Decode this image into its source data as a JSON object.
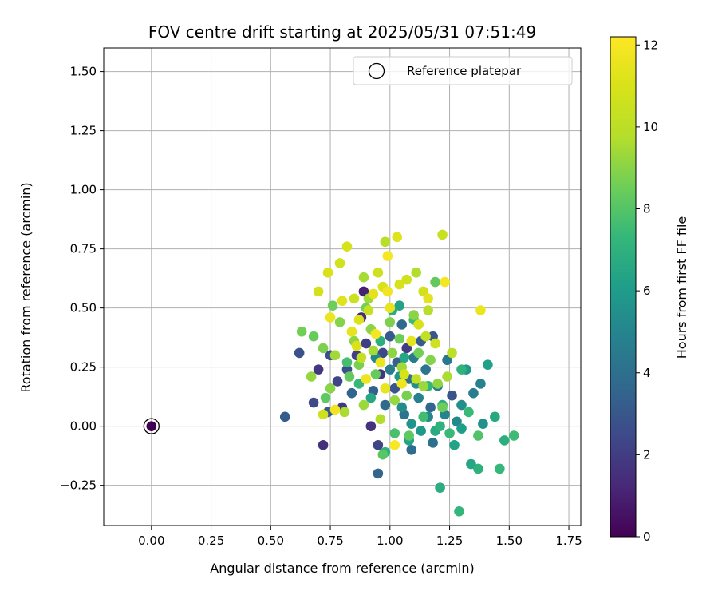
{
  "chart_data": {
    "type": "scatter",
    "title": "FOV centre drift starting at 2025/05/31 07:51:49",
    "xlabel": "Angular distance from reference (arcmin)",
    "ylabel": "Rotation from reference (arcmin)",
    "xlim": [
      -0.2,
      1.8
    ],
    "ylim": [
      -0.42,
      1.6
    ],
    "xticks": [
      "0.00",
      "0.25",
      "0.50",
      "0.75",
      "1.00",
      "1.25",
      "1.50",
      "1.75"
    ],
    "yticks": [
      "−0.25",
      "0.00",
      "0.25",
      "0.50",
      "0.75",
      "1.00",
      "1.25",
      "1.50"
    ],
    "grid": true,
    "legend": {
      "label": "Reference platepar",
      "placement": "top-right"
    },
    "colorbar": {
      "label": "Hours from first FF file",
      "range": [
        0,
        12.2
      ],
      "ticks": [
        "0",
        "2",
        "4",
        "6",
        "8",
        "10",
        "12"
      ],
      "colormap": "viridis"
    },
    "reference_point": {
      "x": 0.0,
      "y": 0.0,
      "hours": 0
    },
    "points": [
      {
        "x": 0.56,
        "y": 0.04,
        "h": 3.2
      },
      {
        "x": 0.62,
        "y": 0.31,
        "h": 2.8
      },
      {
        "x": 0.68,
        "y": 0.1,
        "h": 2.5
      },
      {
        "x": 0.7,
        "y": 0.24,
        "h": 1.8
      },
      {
        "x": 0.72,
        "y": -0.08,
        "h": 1.5
      },
      {
        "x": 0.74,
        "y": 0.06,
        "h": 3.0
      },
      {
        "x": 0.75,
        "y": 0.3,
        "h": 2.6
      },
      {
        "x": 0.78,
        "y": 0.19,
        "h": 2.3
      },
      {
        "x": 0.8,
        "y": 0.08,
        "h": 1.9
      },
      {
        "x": 0.82,
        "y": 0.24,
        "h": 2.7
      },
      {
        "x": 0.84,
        "y": 0.14,
        "h": 3.5
      },
      {
        "x": 0.86,
        "y": 0.3,
        "h": 2.1
      },
      {
        "x": 0.88,
        "y": 0.46,
        "h": 1.4
      },
      {
        "x": 0.89,
        "y": 0.57,
        "h": 1.0
      },
      {
        "x": 0.9,
        "y": 0.35,
        "h": 2.0
      },
      {
        "x": 0.92,
        "y": 0.0,
        "h": 1.6
      },
      {
        "x": 0.93,
        "y": 0.15,
        "h": 3.3
      },
      {
        "x": 0.95,
        "y": -0.2,
        "h": 3.6
      },
      {
        "x": 0.95,
        "y": -0.08,
        "h": 2.2
      },
      {
        "x": 0.96,
        "y": 0.22,
        "h": 1.7
      },
      {
        "x": 0.97,
        "y": 0.31,
        "h": 2.4
      },
      {
        "x": 0.98,
        "y": 0.09,
        "h": 3.8
      },
      {
        "x": 1.0,
        "y": 0.38,
        "h": 3.1
      },
      {
        "x": 1.02,
        "y": 0.16,
        "h": 2.9
      },
      {
        "x": 1.03,
        "y": 0.27,
        "h": 3.4
      },
      {
        "x": 1.05,
        "y": 0.43,
        "h": 3.7
      },
      {
        "x": 1.06,
        "y": 0.05,
        "h": 4.2
      },
      {
        "x": 1.07,
        "y": 0.33,
        "h": 2.0
      },
      {
        "x": 1.08,
        "y": 0.2,
        "h": 4.0
      },
      {
        "x": 1.09,
        "y": -0.1,
        "h": 3.9
      },
      {
        "x": 1.1,
        "y": 0.29,
        "h": 4.5
      },
      {
        "x": 1.12,
        "y": 0.12,
        "h": 4.8
      },
      {
        "x": 1.13,
        "y": 0.36,
        "h": 3.2
      },
      {
        "x": 1.15,
        "y": 0.24,
        "h": 4.3
      },
      {
        "x": 1.17,
        "y": 0.08,
        "h": 3.6
      },
      {
        "x": 1.18,
        "y": -0.07,
        "h": 4.1
      },
      {
        "x": 1.18,
        "y": 0.38,
        "h": 3.0
      },
      {
        "x": 1.2,
        "y": 0.17,
        "h": 4.6
      },
      {
        "x": 1.23,
        "y": 0.05,
        "h": 5.0
      },
      {
        "x": 1.24,
        "y": 0.28,
        "h": 4.4
      },
      {
        "x": 1.26,
        "y": 0.13,
        "h": 2.9
      },
      {
        "x": 1.28,
        "y": 0.02,
        "h": 5.2
      },
      {
        "x": 1.3,
        "y": 0.09,
        "h": 5.4
      },
      {
        "x": 1.32,
        "y": 0.24,
        "h": 5.8
      },
      {
        "x": 1.35,
        "y": 0.14,
        "h": 4.7
      },
      {
        "x": 1.38,
        "y": 0.18,
        "h": 4.9
      },
      {
        "x": 1.39,
        "y": 0.01,
        "h": 5.5
      },
      {
        "x": 1.05,
        "y": 0.08,
        "h": 5.3
      },
      {
        "x": 1.09,
        "y": 0.01,
        "h": 5.6
      },
      {
        "x": 1.13,
        "y": -0.02,
        "h": 5.9
      },
      {
        "x": 1.16,
        "y": 0.04,
        "h": 5.1
      },
      {
        "x": 1.0,
        "y": 0.24,
        "h": 4.6
      },
      {
        "x": 0.94,
        "y": 0.29,
        "h": 5.0
      },
      {
        "x": 1.04,
        "y": 0.21,
        "h": 5.7
      },
      {
        "x": 1.11,
        "y": 0.18,
        "h": 5.4
      },
      {
        "x": 1.21,
        "y": -0.26,
        "h": 6.8
      },
      {
        "x": 1.29,
        "y": -0.36,
        "h": 7.2
      },
      {
        "x": 1.34,
        "y": -0.16,
        "h": 6.5
      },
      {
        "x": 1.37,
        "y": -0.18,
        "h": 7.0
      },
      {
        "x": 1.46,
        "y": -0.18,
        "h": 7.3
      },
      {
        "x": 1.48,
        "y": -0.06,
        "h": 6.9
      },
      {
        "x": 1.52,
        "y": -0.04,
        "h": 7.5
      },
      {
        "x": 1.44,
        "y": 0.04,
        "h": 6.6
      },
      {
        "x": 1.41,
        "y": 0.26,
        "h": 6.2
      },
      {
        "x": 1.3,
        "y": 0.24,
        "h": 7.1
      },
      {
        "x": 1.25,
        "y": -0.03,
        "h": 7.4
      },
      {
        "x": 1.27,
        "y": -0.08,
        "h": 6.3
      },
      {
        "x": 1.19,
        "y": -0.02,
        "h": 6.7
      },
      {
        "x": 1.14,
        "y": 0.04,
        "h": 7.6
      },
      {
        "x": 1.08,
        "y": -0.06,
        "h": 6.4
      },
      {
        "x": 1.02,
        "y": -0.03,
        "h": 7.8
      },
      {
        "x": 0.98,
        "y": -0.11,
        "h": 7.0
      },
      {
        "x": 0.92,
        "y": 0.12,
        "h": 6.6
      },
      {
        "x": 0.87,
        "y": 0.18,
        "h": 7.3
      },
      {
        "x": 0.82,
        "y": 0.27,
        "h": 7.7
      },
      {
        "x": 0.96,
        "y": 0.36,
        "h": 6.9
      },
      {
        "x": 1.06,
        "y": 0.29,
        "h": 6.5
      },
      {
        "x": 1.16,
        "y": 0.17,
        "h": 7.2
      },
      {
        "x": 1.22,
        "y": 0.09,
        "h": 6.8
      },
      {
        "x": 1.33,
        "y": 0.06,
        "h": 7.4
      },
      {
        "x": 1.37,
        "y": -0.04,
        "h": 7.9
      },
      {
        "x": 1.3,
        "y": -0.01,
        "h": 6.1
      },
      {
        "x": 1.1,
        "y": 0.45,
        "h": 7.5
      },
      {
        "x": 1.01,
        "y": 0.49,
        "h": 6.7
      },
      {
        "x": 1.04,
        "y": 0.51,
        "h": 6.3
      },
      {
        "x": 1.21,
        "y": 0.0,
        "h": 7.1
      },
      {
        "x": 0.63,
        "y": 0.4,
        "h": 8.6
      },
      {
        "x": 0.67,
        "y": 0.21,
        "h": 9.2
      },
      {
        "x": 0.68,
        "y": 0.38,
        "h": 8.4
      },
      {
        "x": 0.72,
        "y": 0.33,
        "h": 8.8
      },
      {
        "x": 0.73,
        "y": 0.12,
        "h": 8.2
      },
      {
        "x": 0.75,
        "y": 0.16,
        "h": 9.0
      },
      {
        "x": 0.76,
        "y": 0.51,
        "h": 8.5
      },
      {
        "x": 0.77,
        "y": 0.3,
        "h": 9.4
      },
      {
        "x": 0.79,
        "y": 0.44,
        "h": 8.9
      },
      {
        "x": 0.81,
        "y": 0.06,
        "h": 9.6
      },
      {
        "x": 0.83,
        "y": 0.21,
        "h": 8.3
      },
      {
        "x": 0.85,
        "y": 0.36,
        "h": 9.1
      },
      {
        "x": 0.87,
        "y": 0.26,
        "h": 8.7
      },
      {
        "x": 0.89,
        "y": 0.09,
        "h": 9.3
      },
      {
        "x": 0.89,
        "y": 0.63,
        "h": 9.5
      },
      {
        "x": 0.9,
        "y": 0.5,
        "h": 8.6
      },
      {
        "x": 0.92,
        "y": 0.41,
        "h": 9.0
      },
      {
        "x": 0.94,
        "y": 0.22,
        "h": 8.4
      },
      {
        "x": 0.96,
        "y": 0.03,
        "h": 9.7
      },
      {
        "x": 0.97,
        "y": -0.12,
        "h": 8.1
      },
      {
        "x": 0.98,
        "y": 0.78,
        "h": 9.9
      },
      {
        "x": 1.0,
        "y": 0.44,
        "h": 8.8
      },
      {
        "x": 1.02,
        "y": 0.11,
        "h": 9.2
      },
      {
        "x": 1.04,
        "y": 0.37,
        "h": 8.5
      },
      {
        "x": 1.05,
        "y": 0.25,
        "h": 9.4
      },
      {
        "x": 1.07,
        "y": 0.13,
        "h": 8.7
      },
      {
        "x": 1.08,
        "y": -0.04,
        "h": 8.2
      },
      {
        "x": 1.1,
        "y": 0.47,
        "h": 9.0
      },
      {
        "x": 1.12,
        "y": 0.31,
        "h": 8.6
      },
      {
        "x": 1.14,
        "y": 0.17,
        "h": 9.3
      },
      {
        "x": 1.16,
        "y": 0.49,
        "h": 9.8
      },
      {
        "x": 1.17,
        "y": 0.28,
        "h": 8.9
      },
      {
        "x": 1.19,
        "y": 0.61,
        "h": 8.3
      },
      {
        "x": 1.2,
        "y": 0.18,
        "h": 9.1
      },
      {
        "x": 1.22,
        "y": 0.08,
        "h": 8.5
      },
      {
        "x": 1.24,
        "y": 0.21,
        "h": 9.6
      },
      {
        "x": 1.26,
        "y": 0.31,
        "h": 10.0
      },
      {
        "x": 1.11,
        "y": 0.65,
        "h": 9.7
      },
      {
        "x": 0.93,
        "y": 0.32,
        "h": 9.5
      },
      {
        "x": 1.01,
        "y": 0.31,
        "h": 9.1
      },
      {
        "x": 0.91,
        "y": 0.54,
        "h": 9.4
      },
      {
        "x": 0.7,
        "y": 0.57,
        "h": 10.8
      },
      {
        "x": 0.72,
        "y": 0.05,
        "h": 10.6
      },
      {
        "x": 0.74,
        "y": 0.65,
        "h": 11.0
      },
      {
        "x": 0.75,
        "y": 0.46,
        "h": 11.6
      },
      {
        "x": 0.77,
        "y": 0.07,
        "h": 11.8
      },
      {
        "x": 0.79,
        "y": 0.69,
        "h": 10.7
      },
      {
        "x": 0.8,
        "y": 0.53,
        "h": 11.2
      },
      {
        "x": 0.82,
        "y": 0.76,
        "h": 10.9
      },
      {
        "x": 0.84,
        "y": 0.4,
        "h": 11.4
      },
      {
        "x": 0.85,
        "y": 0.54,
        "h": 10.5
      },
      {
        "x": 0.87,
        "y": 0.45,
        "h": 11.1
      },
      {
        "x": 0.88,
        "y": 0.29,
        "h": 10.3
      },
      {
        "x": 0.9,
        "y": 0.2,
        "h": 11.7
      },
      {
        "x": 0.91,
        "y": 0.49,
        "h": 10.4
      },
      {
        "x": 0.93,
        "y": 0.56,
        "h": 11.3
      },
      {
        "x": 0.94,
        "y": 0.39,
        "h": 11.9
      },
      {
        "x": 0.95,
        "y": 0.65,
        "h": 10.6
      },
      {
        "x": 0.97,
        "y": 0.59,
        "h": 11.0
      },
      {
        "x": 0.99,
        "y": 0.72,
        "h": 12.0
      },
      {
        "x": 1.0,
        "y": 0.5,
        "h": 11.5
      },
      {
        "x": 1.02,
        "y": -0.08,
        "h": 12.1
      },
      {
        "x": 1.03,
        "y": 0.8,
        "h": 11.2
      },
      {
        "x": 1.04,
        "y": 0.6,
        "h": 10.9
      },
      {
        "x": 1.05,
        "y": 0.18,
        "h": 11.8
      },
      {
        "x": 1.07,
        "y": 0.62,
        "h": 10.7
      },
      {
        "x": 1.09,
        "y": 0.36,
        "h": 11.4
      },
      {
        "x": 1.11,
        "y": 0.2,
        "h": 10.2
      },
      {
        "x": 1.12,
        "y": 0.43,
        "h": 11.0
      },
      {
        "x": 1.14,
        "y": 0.57,
        "h": 10.8
      },
      {
        "x": 1.16,
        "y": 0.54,
        "h": 11.3
      },
      {
        "x": 1.19,
        "y": 0.35,
        "h": 10.6
      },
      {
        "x": 1.22,
        "y": 0.81,
        "h": 10.4
      },
      {
        "x": 1.23,
        "y": 0.61,
        "h": 11.9
      },
      {
        "x": 1.38,
        "y": 0.49,
        "h": 11.6
      },
      {
        "x": 0.96,
        "y": 0.27,
        "h": 11.7
      },
      {
        "x": 1.06,
        "y": 0.22,
        "h": 10.9
      },
      {
        "x": 0.86,
        "y": 0.34,
        "h": 11.1
      },
      {
        "x": 0.98,
        "y": 0.16,
        "h": 11.5
      },
      {
        "x": 1.15,
        "y": 0.38,
        "h": 10.3
      },
      {
        "x": 0.99,
        "y": 0.57,
        "h": 11.8
      }
    ]
  }
}
